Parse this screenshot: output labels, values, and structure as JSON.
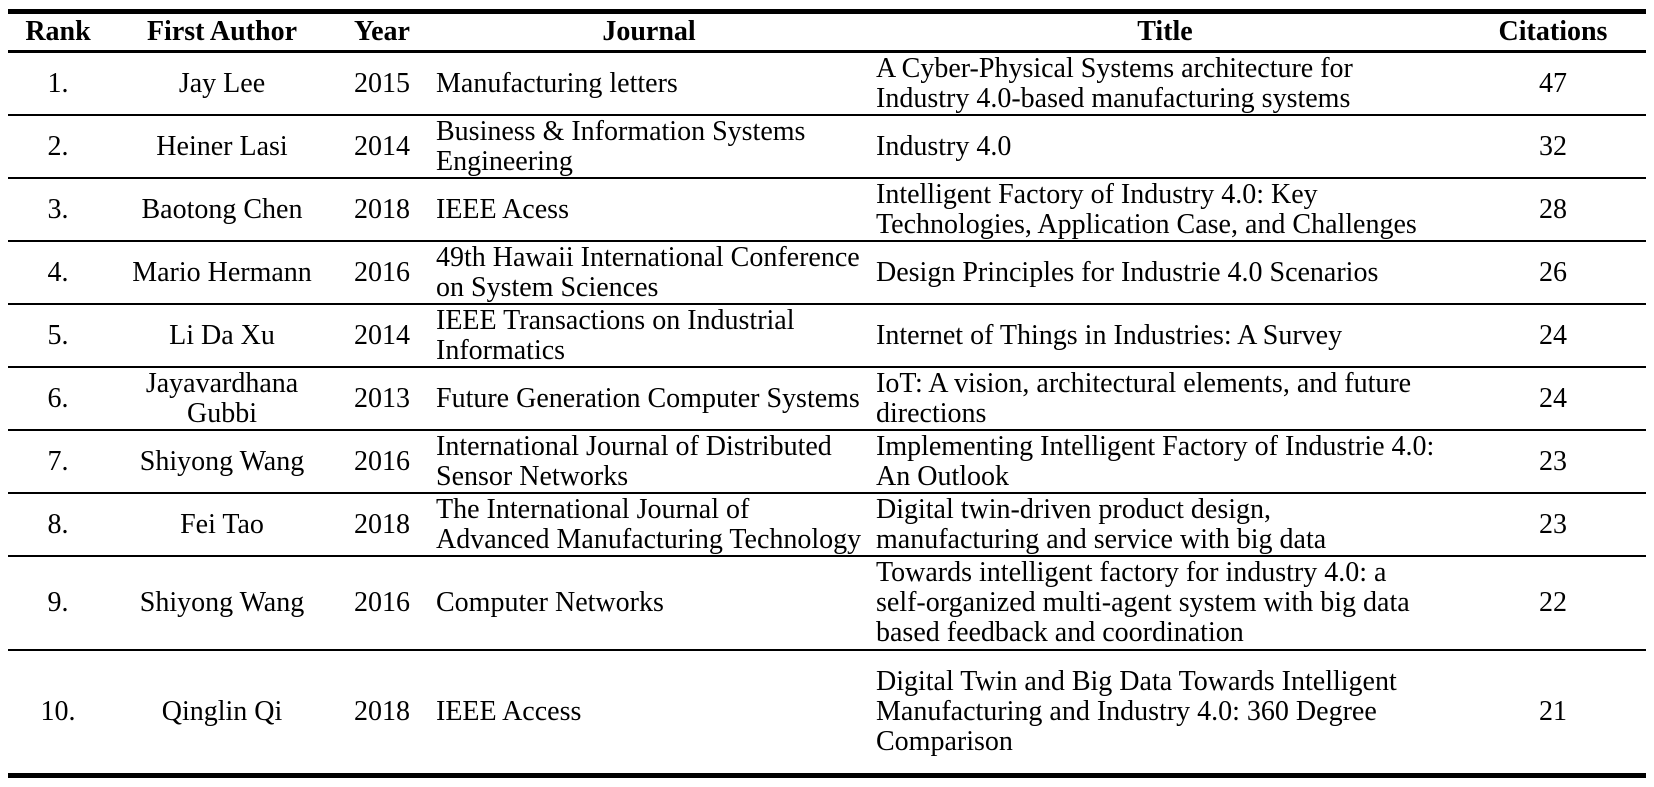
{
  "colors": {
    "background": "#ffffff",
    "text": "#000000",
    "rule": "#000000"
  },
  "table": {
    "columns": [
      {
        "key": "rank",
        "label": "Rank"
      },
      {
        "key": "author",
        "label": "First Author"
      },
      {
        "key": "year",
        "label": "Year"
      },
      {
        "key": "journal",
        "label": "Journal"
      },
      {
        "key": "title",
        "label": "Title"
      },
      {
        "key": "citations",
        "label": "Citations"
      }
    ],
    "rows": [
      {
        "rank": "1.",
        "author": "Jay Lee",
        "year": "2015",
        "journal": "Manufacturing letters",
        "title": "A Cyber-Physical Systems architecture for Industry 4.0-based manufacturing systems",
        "citations": "47"
      },
      {
        "rank": "2.",
        "author": "Heiner Lasi",
        "year": "2014",
        "journal": "Business & Information Systems Engineering",
        "title": "Industry 4.0",
        "citations": "32"
      },
      {
        "rank": "3.",
        "author": "Baotong Chen",
        "year": "2018",
        "journal": "IEEE Acess",
        "title": "Intelligent Factory of Industry 4.0: Key Technologies, Application Case, and Challenges",
        "citations": "28"
      },
      {
        "rank": "4.",
        "author": "Mario Hermann",
        "year": "2016",
        "journal": "49th Hawaii International Conference on System Sciences",
        "title": "Design Principles for Industrie 4.0 Scenarios",
        "citations": "26"
      },
      {
        "rank": "5.",
        "author": "Li Da Xu",
        "year": "2014",
        "journal": "IEEE Transactions on Industrial Informatics",
        "title": "Internet of Things in Industries: A Survey",
        "citations": "24"
      },
      {
        "rank": "6.",
        "author": "Jayavardhana Gubbi",
        "year": "2013",
        "journal": "Future Generation Computer Systems",
        "title": "IoT: A vision, architectural elements, and future directions",
        "citations": "24"
      },
      {
        "rank": "7.",
        "author": "Shiyong Wang",
        "year": "2016",
        "journal": "International Journal of Distributed Sensor Networks",
        "title": "Implementing Intelligent Factory of Industrie 4.0: An Outlook",
        "citations": "23"
      },
      {
        "rank": "8.",
        "author": "Fei Tao",
        "year": "2018",
        "journal": "The International Journal of Advanced Manufacturing Technology",
        "title": "Digital twin-driven product design, manufacturing and service with big data",
        "citations": "23"
      },
      {
        "rank": "9.",
        "author": "Shiyong Wang",
        "year": "2016",
        "journal": "Computer Networks",
        "title": "Towards intelligent factory for industry 4.0: a self-organized multi-agent system with big data based feedback and coordination",
        "citations": "22"
      },
      {
        "rank": "10.",
        "author": "Qinglin Qi",
        "year": "2018",
        "journal": "IEEE Access",
        "title": "Digital Twin and Big Data Towards Intelligent Manufacturing and Industry 4.0: 360 Degree Comparison",
        "citations": "21"
      }
    ]
  }
}
